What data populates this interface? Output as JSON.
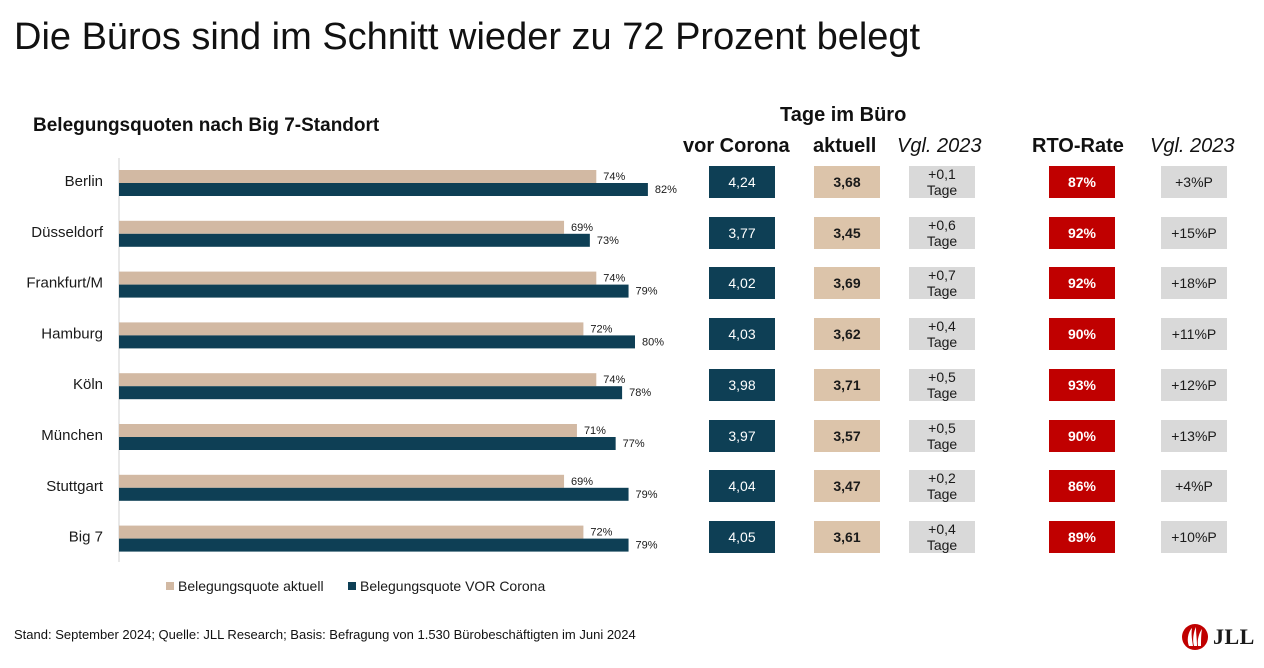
{
  "title": "Die Büros sind im Schnitt wieder zu 72 Prozent belegt",
  "subtitle": "Belegungsquoten nach Big 7-Standort",
  "headers": {
    "group": "Tage im Büro",
    "vor_corona": "vor Corona",
    "aktuell": "aktuell",
    "vgl_2023_days": "Vgl. 2023",
    "rto_rate": "RTO-Rate",
    "vgl_2023_rto": "Vgl. 2023"
  },
  "colors": {
    "aktuell": "#d2b9a3",
    "vor_corona": "#0e3f55",
    "rto": "#c00000",
    "neutral": "#d9d9d9"
  },
  "chart_data": {
    "type": "bar",
    "orientation": "horizontal",
    "title": "Belegungsquoten nach Big 7-Standort",
    "categories": [
      "Berlin",
      "Düsseldorf",
      "Frankfurt/M",
      "Hamburg",
      "Köln",
      "München",
      "Stuttgart",
      "Big 7"
    ],
    "series": [
      {
        "name": "Belegungsquote aktuell",
        "values": [
          74,
          69,
          74,
          72,
          74,
          71,
          69,
          72
        ],
        "labels": [
          "74%",
          "69%",
          "74%",
          "72%",
          "74%",
          "71%",
          "69%",
          "72%"
        ]
      },
      {
        "name": "Belegungsquote VOR Corona",
        "values": [
          82,
          73,
          79,
          80,
          78,
          77,
          79,
          79
        ],
        "labels": [
          "82%",
          "73%",
          "79%",
          "80%",
          "78%",
          "77%",
          "79%",
          "79%"
        ]
      }
    ],
    "xlim": [
      0,
      100
    ],
    "grid": false,
    "legend": "bottom"
  },
  "table": {
    "rows": [
      {
        "city": "Berlin",
        "vor_corona": "4,24",
        "aktuell": "3,68",
        "vgl_value": "+0,1",
        "vgl_unit": "Tage",
        "rto": "87%",
        "rto_vgl": "+3%P"
      },
      {
        "city": "Düsseldorf",
        "vor_corona": "3,77",
        "aktuell": "3,45",
        "vgl_value": "+0,6",
        "vgl_unit": "Tage",
        "rto": "92%",
        "rto_vgl": "+15%P"
      },
      {
        "city": "Frankfurt/M",
        "vor_corona": "4,02",
        "aktuell": "3,69",
        "vgl_value": "+0,7",
        "vgl_unit": "Tage",
        "rto": "92%",
        "rto_vgl": "+18%P"
      },
      {
        "city": "Hamburg",
        "vor_corona": "4,03",
        "aktuell": "3,62",
        "vgl_value": "+0,4",
        "vgl_unit": "Tage",
        "rto": "90%",
        "rto_vgl": "+11%P"
      },
      {
        "city": "Köln",
        "vor_corona": "3,98",
        "aktuell": "3,71",
        "vgl_value": "+0,5",
        "vgl_unit": "Tage",
        "rto": "93%",
        "rto_vgl": "+12%P"
      },
      {
        "city": "München",
        "vor_corona": "3,97",
        "aktuell": "3,57",
        "vgl_value": "+0,5",
        "vgl_unit": "Tage",
        "rto": "90%",
        "rto_vgl": "+13%P"
      },
      {
        "city": "Stuttgart",
        "vor_corona": "4,04",
        "aktuell": "3,47",
        "vgl_value": "+0,2",
        "vgl_unit": "Tage",
        "rto": "86%",
        "rto_vgl": "+4%P"
      },
      {
        "city": "Big 7",
        "vor_corona": "4,05",
        "aktuell": "3,61",
        "vgl_value": "+0,4",
        "vgl_unit": "Tage",
        "rto": "89%",
        "rto_vgl": "+10%P"
      }
    ]
  },
  "legend": {
    "aktuell": "Belegungsquote aktuell",
    "vor_corona": "Belegungsquote VOR Corona"
  },
  "footer": "Stand: September 2024; Quelle: JLL Research; Basis: Befragung von 1.530 Bürobeschäftigten im Juni 2024",
  "logo": {
    "text": "JLL",
    "icon": "jll-flame-logo-icon"
  }
}
